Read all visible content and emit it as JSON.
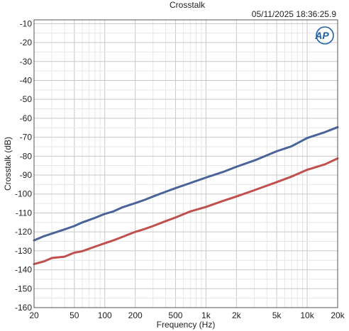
{
  "chart_data": {
    "type": "line",
    "title": "Crosstalk",
    "timestamp": "05/11/2025 18:36:25.9",
    "logo_text": "AP",
    "xlabel": "Frequency (Hz)",
    "ylabel": "Crosstalk (dB)",
    "x_scale": "log",
    "xlim": [
      20,
      20000
    ],
    "ylim": [
      -160,
      -8
    ],
    "grid": true,
    "x_ticks": [
      {
        "value": 20,
        "label": "20"
      },
      {
        "value": 50,
        "label": "50"
      },
      {
        "value": 100,
        "label": "100"
      },
      {
        "value": 200,
        "label": "200"
      },
      {
        "value": 500,
        "label": "500"
      },
      {
        "value": 1000,
        "label": "1k"
      },
      {
        "value": 2000,
        "label": "2k"
      },
      {
        "value": 5000,
        "label": "5k"
      },
      {
        "value": 10000,
        "label": "10k"
      },
      {
        "value": 20000,
        "label": "20k"
      }
    ],
    "y_ticks": [
      {
        "value": -10,
        "label": "-10"
      },
      {
        "value": -20,
        "label": "-20"
      },
      {
        "value": -30,
        "label": "-30"
      },
      {
        "value": -40,
        "label": "-40"
      },
      {
        "value": -50,
        "label": "-50"
      },
      {
        "value": -60,
        "label": "-60"
      },
      {
        "value": -70,
        "label": "-70"
      },
      {
        "value": -80,
        "label": "-80"
      },
      {
        "value": -90,
        "label": "-90"
      },
      {
        "value": -100,
        "label": "-100"
      },
      {
        "value": -110,
        "label": "-110"
      },
      {
        "value": -120,
        "label": "-120"
      },
      {
        "value": -130,
        "label": "-130"
      },
      {
        "value": -140,
        "label": "-140"
      },
      {
        "value": -150,
        "label": "-150"
      },
      {
        "value": -160,
        "label": "-160"
      }
    ],
    "series": [
      {
        "color": "#4a6398",
        "x": [
          20,
          25,
          30,
          40,
          50,
          60,
          80,
          100,
          120,
          150,
          200,
          250,
          300,
          400,
          500,
          700,
          1000,
          1500,
          2000,
          3000,
          5000,
          7000,
          10000,
          15000,
          20000
        ],
        "y": [
          -124.5,
          -122.3,
          -120.9,
          -118.7,
          -116.9,
          -115,
          -112.6,
          -110.5,
          -109.3,
          -107,
          -104.8,
          -103,
          -101.3,
          -98.8,
          -96.9,
          -94.2,
          -91.3,
          -88.2,
          -85.6,
          -82.3,
          -77.4,
          -74.8,
          -70.4,
          -67.3,
          -64.7
        ]
      },
      {
        "color": "#c0504d",
        "x": [
          20,
          25,
          30,
          40,
          50,
          60,
          80,
          100,
          120,
          150,
          200,
          250,
          300,
          400,
          500,
          700,
          1000,
          1500,
          2000,
          3000,
          5000,
          7000,
          10000,
          15000,
          20000
        ],
        "y": [
          -137,
          -135.6,
          -133.8,
          -133.1,
          -131,
          -130.2,
          -127.8,
          -126,
          -124.6,
          -122.6,
          -120,
          -118.4,
          -116.9,
          -114.3,
          -112.4,
          -109.2,
          -106.8,
          -103.5,
          -101.3,
          -98,
          -93.7,
          -90.8,
          -87.2,
          -84.3,
          -81.2
        ]
      }
    ]
  }
}
